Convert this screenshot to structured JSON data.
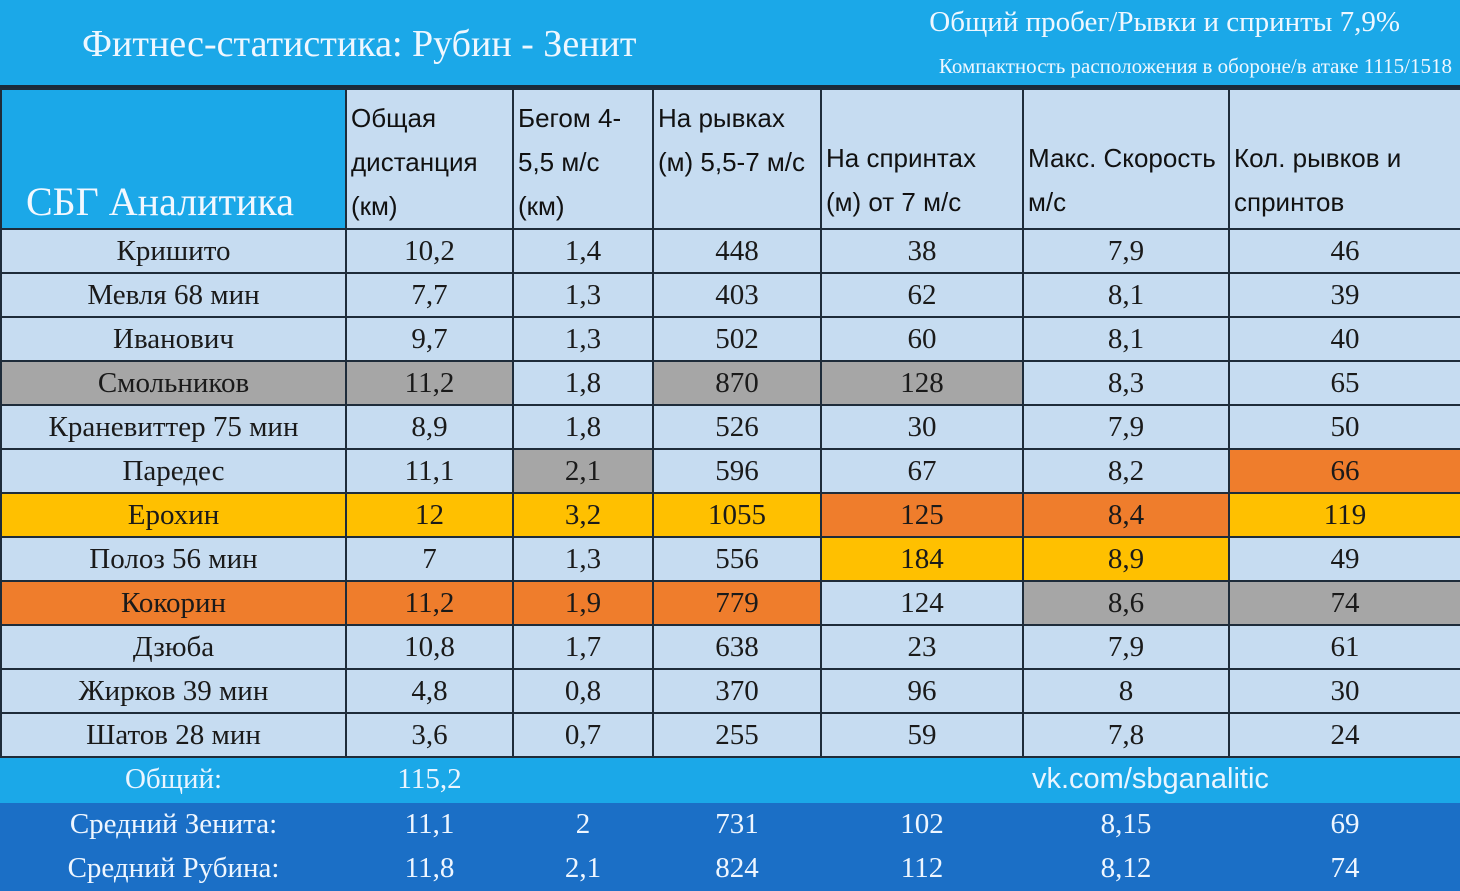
{
  "header": {
    "title": "Фитнес-статистика: Рубин - Зенит",
    "stat_line1": "Общий пробег/Рывки и спринты 7,9%",
    "stat_line2": "Компактность расположения в обороне/в атаке 1115/1518",
    "brand": "СБГ Аналитика"
  },
  "columns": [
    "Общая дистанция (км)",
    "Бегом 4-5,5 м/с (км)",
    "На рывках (м) 5,5-7 м/с",
    "На спринтах (м) от 7 м/с",
    "Макс. Скорость м/с",
    "Кол. рывков и спринтов"
  ],
  "colors": {
    "gray": "#a6a6a6",
    "yellow": "#ffc000",
    "orange": "#ef7d2c",
    "cyan": "#1ba8e8",
    "dark_blue": "#1b6fc6",
    "cell_bg": "#c6dcf1"
  },
  "rows": [
    {
      "name": "Кришито",
      "values": [
        "10,2",
        "1,4",
        "448",
        "38",
        "7,9",
        "46"
      ],
      "highlight": [
        "",
        "",
        "",
        "",
        "",
        "",
        ""
      ]
    },
    {
      "name": "Мевля 68 мин",
      "values": [
        "7,7",
        "1,3",
        "403",
        "62",
        "8,1",
        "39"
      ],
      "highlight": [
        "",
        "",
        "",
        "",
        "",
        "",
        ""
      ]
    },
    {
      "name": "Иванович",
      "values": [
        "9,7",
        "1,3",
        "502",
        "60",
        "8,1",
        "40"
      ],
      "highlight": [
        "",
        "",
        "",
        "",
        "",
        "",
        ""
      ]
    },
    {
      "name": "Смольников",
      "values": [
        "11,2",
        "1,8",
        "870",
        "128",
        "8,3",
        "65"
      ],
      "highlight": [
        "gray",
        "gray",
        "",
        "gray",
        "gray",
        "",
        ""
      ]
    },
    {
      "name": "Краневиттер 75 мин",
      "values": [
        "8,9",
        "1,8",
        "526",
        "30",
        "7,9",
        "50"
      ],
      "highlight": [
        "",
        "",
        "",
        "",
        "",
        "",
        ""
      ]
    },
    {
      "name": "Паредес",
      "values": [
        "11,1",
        "2,1",
        "596",
        "67",
        "8,2",
        "66"
      ],
      "highlight": [
        "",
        "",
        "gray",
        "",
        "",
        "",
        "orange"
      ]
    },
    {
      "name": "Ерохин",
      "values": [
        "12",
        "3,2",
        "1055",
        "125",
        "8,4",
        "119"
      ],
      "highlight": [
        "yellow",
        "yellow",
        "yellow",
        "yellow",
        "orange",
        "orange",
        "yellow"
      ]
    },
    {
      "name": "Полоз 56 мин",
      "values": [
        "7",
        "1,3",
        "556",
        "184",
        "8,9",
        "49"
      ],
      "highlight": [
        "",
        "",
        "",
        "",
        "yellow",
        "yellow",
        ""
      ]
    },
    {
      "name": "Кокорин",
      "values": [
        "11,2",
        "1,9",
        "779",
        "124",
        "8,6",
        "74"
      ],
      "highlight": [
        "orange",
        "orange",
        "orange",
        "orange",
        "",
        "gray",
        "gray"
      ]
    },
    {
      "name": "Дзюба",
      "values": [
        "10,8",
        "1,7",
        "638",
        "23",
        "7,9",
        "61"
      ],
      "highlight": [
        "",
        "",
        "",
        "",
        "",
        "",
        ""
      ]
    },
    {
      "name": "Жирков 39 мин",
      "values": [
        "4,8",
        "0,8",
        "370",
        "96",
        "8",
        "30"
      ],
      "highlight": [
        "",
        "",
        "",
        "",
        "",
        "",
        ""
      ]
    },
    {
      "name": "Шатов 28 мин",
      "values": [
        "3,6",
        "0,7",
        "255",
        "59",
        "7,8",
        "24"
      ],
      "highlight": [
        "",
        "",
        "",
        "",
        "",
        "",
        ""
      ]
    }
  ],
  "total": {
    "label": "Общий:",
    "value": "115,2",
    "link": "vk.com/sbganalitic"
  },
  "averages": [
    {
      "label": "Средний Зенита:",
      "values": [
        "11,1",
        "2",
        "731",
        "102",
        "8,15",
        "69"
      ]
    },
    {
      "label": "Средний Рубина:",
      "values": [
        "11,8",
        "2,1",
        "824",
        "112",
        "8,12",
        "74"
      ]
    }
  ]
}
